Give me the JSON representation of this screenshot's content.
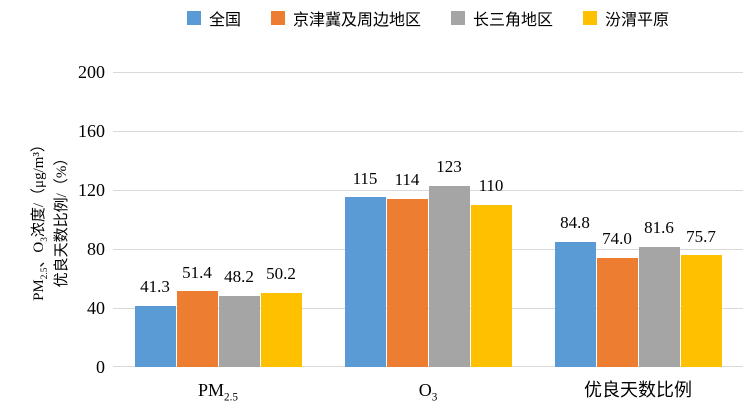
{
  "chart_data": {
    "type": "bar",
    "title": "",
    "categories_rich": [
      "PM~2.5~",
      "O~3~",
      "优良天数比例"
    ],
    "series": [
      {
        "name": "全国",
        "color": "#5B9BD5",
        "values": [
          41.3,
          115,
          84.8
        ],
        "labels": [
          "41.3",
          "115",
          "84.8"
        ]
      },
      {
        "name": "京津冀及周边地区",
        "color": "#ED7D31",
        "values": [
          51.4,
          114,
          74.0
        ],
        "labels": [
          "51.4",
          "114",
          "74.0"
        ]
      },
      {
        "name": "长三角地区",
        "color": "#A5A5A5",
        "values": [
          48.2,
          123,
          81.6
        ],
        "labels": [
          "48.2",
          "123",
          "81.6"
        ]
      },
      {
        "name": "汾渭平原",
        "color": "#FFC000",
        "values": [
          50.2,
          110,
          75.7
        ],
        "labels": [
          "50.2",
          "110",
          "75.7"
        ]
      }
    ],
    "xlabel": "",
    "ylabel_lines_rich": [
      "PM~2.5~、O~3~浓度/（μg/m³）",
      "优良天数比例/（%）"
    ],
    "yticks": [
      0,
      40,
      80,
      120,
      160,
      200
    ],
    "ylim": [
      0,
      200
    ],
    "grid": true,
    "legend_position": "top",
    "colors": {
      "gridline": "#D9D9D9",
      "text": "#000000",
      "background": "#FFFFFF"
    }
  }
}
